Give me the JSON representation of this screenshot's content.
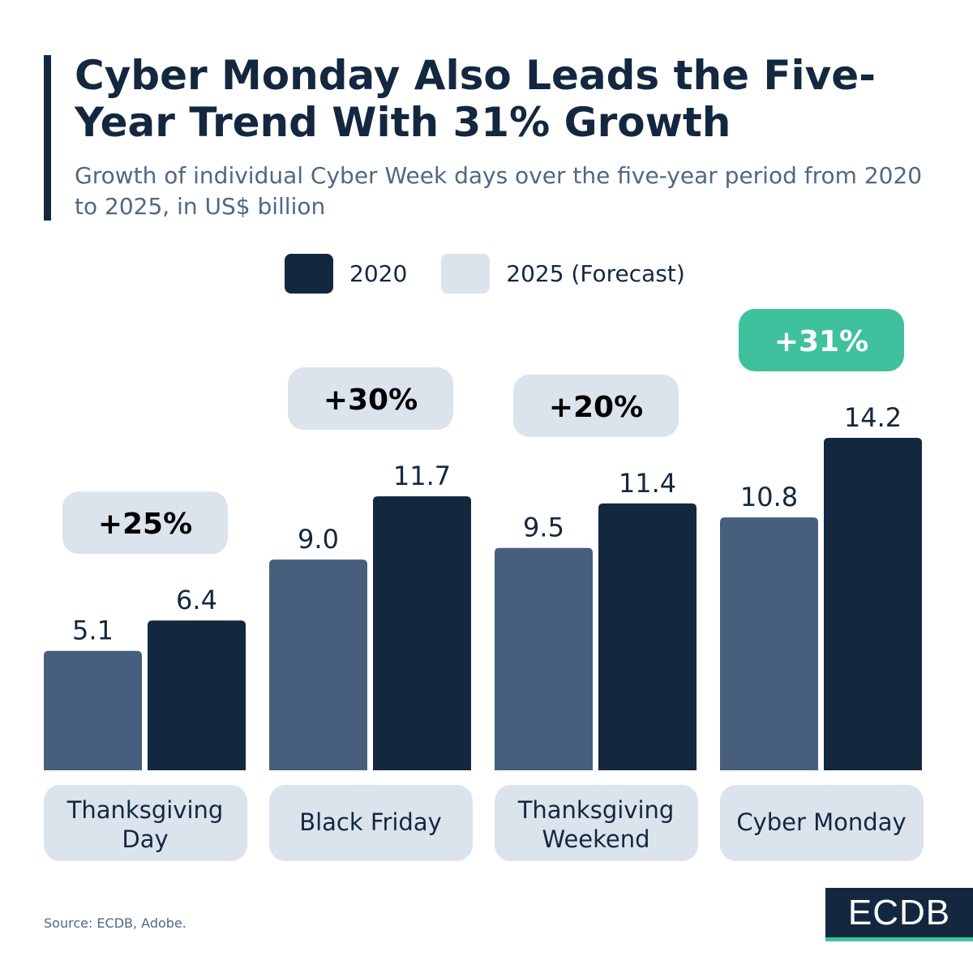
{
  "title": "Cyber Monday Also Leads the Five-Year Trend With 31% Growth",
  "subtitle": "Growth of individual Cyber Week days over the five-year period from 2020 to 2025, in US$ billion",
  "source": "Source: ECDB, Adobe.",
  "logo": "ECDB",
  "colors": {
    "dark": "#13283f",
    "mid": "#475f7c",
    "light": "#dbe3ec",
    "highlight": "#3fc19d"
  },
  "chart_data": {
    "type": "bar",
    "title": "Cyber Monday Also Leads the Five-Year Trend With 31% Growth",
    "categories": [
      "Thanksgiving Day",
      "Black Friday",
      "Thanksgiving Weekend",
      "Cyber Monday"
    ],
    "series": [
      {
        "name": "2020",
        "values": [
          5.1,
          9.0,
          9.5,
          10.8
        ],
        "color": "#475f7c"
      },
      {
        "name": "2025 (Forecast)",
        "values": [
          6.4,
          11.7,
          11.4,
          14.2
        ],
        "color": "#13283f"
      }
    ],
    "legend": [
      {
        "label": "2020",
        "color": "#13283f"
      },
      {
        "label": "2025 (Forecast)",
        "color": "#dbe3ec"
      }
    ],
    "legend_placement": "top",
    "growth_labels": [
      "+25%",
      "+30%",
      "+20%",
      "+31%"
    ],
    "highlighted_category": "Cyber Monday",
    "data_labels": [
      "5.1",
      "6.4",
      "9.0",
      "11.7",
      "9.5",
      "11.4",
      "10.8",
      "14.2"
    ],
    "ylim": [
      0,
      14.2
    ],
    "grid": false
  }
}
